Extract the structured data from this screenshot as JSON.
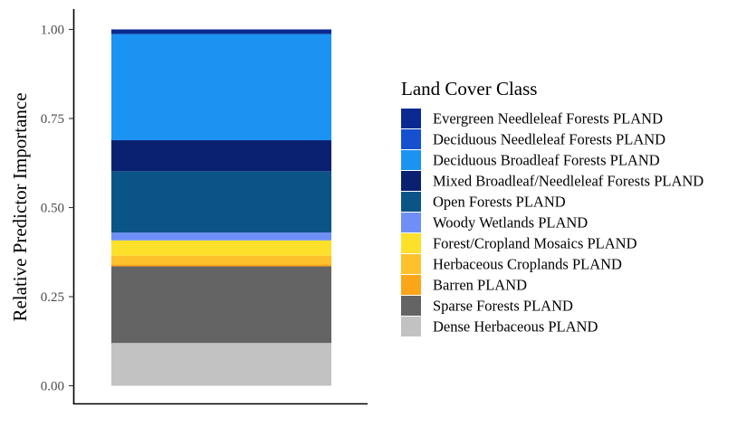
{
  "chart_data": {
    "type": "bar",
    "stacked": true,
    "categories": [
      ""
    ],
    "xlabel": "",
    "ylabel": "Relative Predictor Importance",
    "ylim": [
      0,
      1
    ],
    "y_ticks": [
      "0.00",
      "0.25",
      "0.50",
      "0.75",
      "1.00"
    ],
    "grid": false,
    "legend": {
      "title": "Land Cover Class",
      "position": "right"
    },
    "series": [
      {
        "name": "Evergreen Needleleaf Forests PLAND",
        "values": [
          0.013
        ],
        "color": "#0b2a91"
      },
      {
        "name": "Deciduous Needleleaf Forests PLAND",
        "values": [
          0.0
        ],
        "color": "#1550d1"
      },
      {
        "name": "Deciduous Broadleaf Forests PLAND",
        "values": [
          0.298
        ],
        "color": "#1b93f3"
      },
      {
        "name": "Mixed Broadleaf/Needleleaf Forests PLAND",
        "values": [
          0.087
        ],
        "color": "#0a2171"
      },
      {
        "name": "Open Forests PLAND",
        "values": [
          0.172
        ],
        "color": "#0b5487"
      },
      {
        "name": "Woody Wetlands PLAND",
        "values": [
          0.022
        ],
        "color": "#6e8ff5"
      },
      {
        "name": "Forest/Cropland Mosaics PLAND",
        "values": [
          0.043
        ],
        "color": "#fde02a"
      },
      {
        "name": "Herbaceous Croplands PLAND",
        "values": [
          0.025
        ],
        "color": "#fcc12b"
      },
      {
        "name": "Barren PLAND",
        "values": [
          0.005
        ],
        "color": "#fba518"
      },
      {
        "name": "Sparse Forests PLAND",
        "values": [
          0.215
        ],
        "color": "#646464"
      },
      {
        "name": "Dense Herbaceous PLAND",
        "values": [
          0.12
        ],
        "color": "#c2c2c2"
      }
    ]
  }
}
